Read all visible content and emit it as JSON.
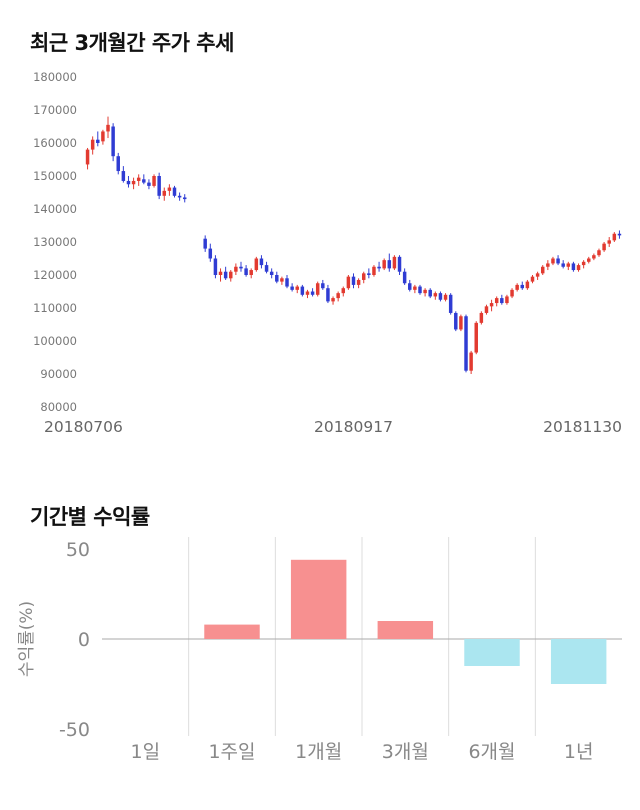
{
  "chart_data": [
    {
      "type": "candlestick",
      "title": "최근 3개월간 주가 추세",
      "ylim": [
        80000,
        180000
      ],
      "yticks": [
        180000,
        170000,
        160000,
        150000,
        140000,
        130000,
        120000,
        110000,
        100000,
        90000,
        80000
      ],
      "xtick_labels": [
        "20180706",
        "20180917",
        "20181130"
      ],
      "up_color": "#e23a30",
      "down_color": "#2f3cd3",
      "axis_text_color": "#777777",
      "xlabel_text_color": "#666666",
      "grid": false,
      "candles": [
        [
          153500,
          158500,
          152000,
          158000
        ],
        [
          158000,
          162000,
          156500,
          161000
        ],
        [
          161000,
          163500,
          159000,
          160000
        ],
        [
          160500,
          164000,
          159500,
          163500
        ],
        [
          163500,
          168000,
          161500,
          165500
        ],
        [
          165000,
          166000,
          154500,
          156000
        ],
        [
          156000,
          157000,
          150500,
          151500
        ],
        [
          151500,
          153000,
          148000,
          148500
        ],
        [
          148500,
          150000,
          146500,
          147500
        ],
        [
          147500,
          149500,
          146000,
          148500
        ],
        [
          148500,
          150500,
          147000,
          149500
        ],
        [
          149000,
          150500,
          147500,
          148000
        ],
        [
          148000,
          149000,
          146000,
          147000
        ],
        [
          147000,
          150500,
          146500,
          150000
        ],
        [
          150000,
          151000,
          143000,
          144000
        ],
        [
          144000,
          146500,
          142500,
          145500
        ],
        [
          145500,
          147500,
          144000,
          146500
        ],
        [
          146500,
          147000,
          143500,
          144000
        ],
        [
          144000,
          145000,
          142500,
          143500
        ],
        [
          143500,
          144500,
          142000,
          143000
        ],
        null,
        null,
        null,
        [
          131000,
          132000,
          127000,
          128000
        ],
        [
          128000,
          129500,
          124000,
          125000
        ],
        [
          125000,
          126000,
          119000,
          120000
        ],
        [
          120000,
          122000,
          118000,
          121000
        ],
        [
          121000,
          122500,
          118500,
          119000
        ],
        [
          119000,
          121500,
          118000,
          121000
        ],
        [
          121000,
          123500,
          120000,
          122500
        ],
        [
          122500,
          124000,
          121000,
          122000
        ],
        [
          122000,
          123000,
          119500,
          120000
        ],
        [
          120000,
          122000,
          119000,
          121500
        ],
        [
          121500,
          125500,
          121000,
          125000
        ],
        [
          125000,
          126000,
          122000,
          123000
        ],
        [
          123000,
          124000,
          120500,
          121000
        ],
        [
          121000,
          122000,
          119000,
          120000
        ],
        [
          120000,
          121000,
          117500,
          118000
        ],
        [
          118000,
          119500,
          117000,
          119000
        ],
        [
          119000,
          120000,
          116000,
          116500
        ],
        [
          116500,
          117500,
          115000,
          115500
        ],
        [
          115500,
          117000,
          114500,
          116500
        ],
        [
          116500,
          117000,
          113500,
          114000
        ],
        [
          114000,
          115500,
          113000,
          115000
        ],
        [
          115000,
          116000,
          113500,
          114000
        ],
        [
          114000,
          118000,
          113500,
          117500
        ],
        [
          117500,
          118500,
          115500,
          116000
        ],
        [
          116000,
          117000,
          111500,
          112000
        ],
        [
          112000,
          113500,
          111000,
          113000
        ],
        [
          113000,
          115000,
          112000,
          114500
        ],
        [
          114500,
          116500,
          113500,
          116000
        ],
        [
          116000,
          120000,
          115500,
          119500
        ],
        [
          119500,
          120500,
          116000,
          117000
        ],
        [
          117000,
          119000,
          116000,
          118500
        ],
        [
          118500,
          121000,
          117500,
          120500
        ],
        [
          120500,
          122000,
          119000,
          120000
        ],
        [
          120000,
          123000,
          119500,
          122500
        ],
        [
          122500,
          124000,
          121000,
          122000
        ],
        [
          122000,
          125000,
          121500,
          124500
        ],
        [
          124500,
          126500,
          121000,
          122000
        ],
        [
          122000,
          126000,
          121500,
          125500
        ],
        [
          125500,
          126000,
          120000,
          121000
        ],
        [
          121000,
          122000,
          117000,
          117500
        ],
        [
          117500,
          118500,
          115000,
          115500
        ],
        [
          115500,
          117000,
          114500,
          116500
        ],
        [
          116500,
          117000,
          114000,
          114500
        ],
        [
          114500,
          116000,
          113500,
          115500
        ],
        [
          115500,
          116000,
          113000,
          113500
        ],
        [
          113500,
          115000,
          112500,
          114500
        ],
        [
          114500,
          115000,
          112000,
          112500
        ],
        [
          112500,
          114500,
          112000,
          114000
        ],
        [
          114000,
          114500,
          108000,
          108500
        ],
        [
          108500,
          109000,
          103000,
          103500
        ],
        [
          103500,
          108000,
          103000,
          107500
        ],
        [
          107500,
          108000,
          90500,
          91000
        ],
        [
          91000,
          97000,
          90000,
          96500
        ],
        [
          96500,
          106000,
          96000,
          105500
        ],
        [
          105500,
          109000,
          105000,
          108500
        ],
        [
          108500,
          111000,
          108000,
          110500
        ],
        [
          110500,
          112500,
          109000,
          111500
        ],
        [
          111500,
          113500,
          110500,
          113000
        ],
        [
          113000,
          114000,
          111000,
          111500
        ],
        [
          111500,
          114000,
          111000,
          113500
        ],
        [
          113500,
          116000,
          113000,
          115500
        ],
        [
          115500,
          117500,
          115000,
          117000
        ],
        [
          117000,
          118000,
          115500,
          116000
        ],
        [
          116000,
          118500,
          115500,
          118000
        ],
        [
          118000,
          120000,
          117500,
          119500
        ],
        [
          119500,
          121000,
          118500,
          120500
        ],
        [
          120500,
          123000,
          120000,
          122500
        ],
        [
          122500,
          124500,
          121500,
          123500
        ],
        [
          123500,
          125500,
          123000,
          125000
        ],
        [
          125000,
          126000,
          123000,
          123500
        ],
        [
          123500,
          124500,
          122000,
          122500
        ],
        [
          122500,
          124000,
          121500,
          123500
        ],
        [
          123500,
          124000,
          121000,
          121500
        ],
        [
          121500,
          123500,
          121000,
          123000
        ],
        [
          123000,
          124500,
          122000,
          124000
        ],
        [
          124000,
          125500,
          123500,
          125000
        ],
        [
          125000,
          126500,
          124500,
          126000
        ],
        [
          126000,
          128000,
          125500,
          127500
        ],
        [
          127500,
          130000,
          127000,
          129500
        ],
        [
          129500,
          131500,
          128500,
          130500
        ],
        [
          130500,
          133000,
          130000,
          132500
        ],
        [
          132500,
          133500,
          131000,
          132000
        ]
      ]
    },
    {
      "type": "bar",
      "title": "기간별 수익률",
      "ylabel": "수익률(%)",
      "categories": [
        "1일",
        "1주일",
        "1개월",
        "3개월",
        "6개월",
        "1년"
      ],
      "values": [
        0,
        8,
        44,
        10,
        -15,
        -25
      ],
      "ylim": [
        -50,
        50
      ],
      "yticks": [
        50,
        0,
        -50
      ],
      "positive_color": "#f79090",
      "negative_color": "#abe6f0",
      "axis_text_color": "#888888",
      "zero_line_color": "#aaaaaa",
      "grid_line_color": "#dddddd",
      "grid": true,
      "legend": "none"
    }
  ]
}
